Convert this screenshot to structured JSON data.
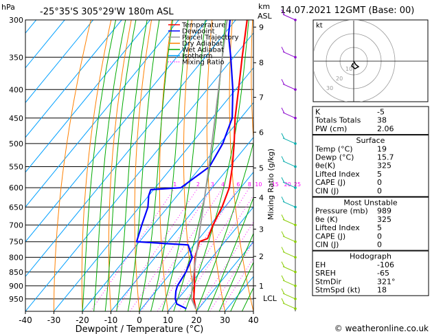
{
  "header": {
    "hpa_label": "hPa",
    "location": "-25°35'S  305°29'W  180m  ASL",
    "km_label": "km",
    "asl_label": "ASL",
    "datetime": "14.07.2021  12GMT  (Base: 00)"
  },
  "legend": [
    {
      "label": "Temperature",
      "color": "#ff0000",
      "dash": "solid"
    },
    {
      "label": "Dewpoint",
      "color": "#0000ff",
      "dash": "solid"
    },
    {
      "label": "Parcel Trajectory",
      "color": "#999999",
      "dash": "solid"
    },
    {
      "label": "Dry Adiabat",
      "color": "#ff8000",
      "dash": "solid"
    },
    {
      "label": "Wet Adiabat",
      "color": "#00aa00",
      "dash": "solid"
    },
    {
      "label": "Isotherm",
      "color": "#00a0ff",
      "dash": "solid"
    },
    {
      "label": "Mixing Ratio",
      "color": "#ff00ff",
      "dash": "dotted"
    }
  ],
  "chart_data": {
    "type": "line",
    "subtype": "skew-t log-p",
    "xlabel": "Dewpoint / Temperature (°C)",
    "ylabel": "hPa",
    "xlim": [
      -40,
      40
    ],
    "ylim": [
      1000,
      300
    ],
    "x_ticks": [
      -40,
      -30,
      -20,
      -10,
      0,
      10,
      20,
      30,
      40
    ],
    "pressure_levels": [
      300,
      350,
      400,
      450,
      500,
      550,
      600,
      650,
      700,
      750,
      800,
      850,
      900,
      950
    ],
    "altitude_km_labels": [
      {
        "km": "9",
        "p": 309
      },
      {
        "km": "8",
        "p": 358
      },
      {
        "km": "7",
        "p": 413
      },
      {
        "km": "6",
        "p": 477
      },
      {
        "km": "5",
        "p": 553
      },
      {
        "km": "4",
        "p": 625
      },
      {
        "km": "3",
        "p": 712
      },
      {
        "km": "2",
        "p": 797
      },
      {
        "km": "1",
        "p": 900
      },
      {
        "km": "LCL",
        "p": 948
      }
    ],
    "mixing_ratio_label": "Mixing Ratio (g/kg)",
    "mixing_ratio_values": [
      "1",
      "2",
      "3",
      "4",
      "6",
      "8",
      "10",
      "15",
      "20",
      "25"
    ],
    "series": [
      {
        "name": "Temperature",
        "color": "#ff0000",
        "points": [
          [
            989,
            19
          ],
          [
            950,
            15.5
          ],
          [
            900,
            12
          ],
          [
            850,
            8
          ],
          [
            800,
            4
          ],
          [
            750,
            1
          ],
          [
            740,
            3
          ],
          [
            700,
            1
          ],
          [
            650,
            -1
          ],
          [
            600,
            -4
          ],
          [
            550,
            -9
          ],
          [
            500,
            -15
          ],
          [
            450,
            -22
          ],
          [
            400,
            -29
          ],
          [
            350,
            -37
          ],
          [
            300,
            -46
          ]
        ]
      },
      {
        "name": "Dewpoint",
        "color": "#0000ff",
        "points": [
          [
            989,
            15.7
          ],
          [
            970,
            11
          ],
          [
            950,
            9
          ],
          [
            920,
            7
          ],
          [
            900,
            6
          ],
          [
            850,
            5
          ],
          [
            800,
            3
          ],
          [
            760,
            -2
          ],
          [
            750,
            -21
          ],
          [
            700,
            -24
          ],
          [
            650,
            -27
          ],
          [
            620,
            -30
          ],
          [
            605,
            -31
          ],
          [
            600,
            -21
          ],
          [
            550,
            -17
          ],
          [
            500,
            -19
          ],
          [
            450,
            -23
          ],
          [
            400,
            -31
          ],
          [
            350,
            -41
          ],
          [
            320,
            -48
          ],
          [
            300,
            -52
          ]
        ]
      },
      {
        "name": "Parcel Trajectory",
        "color": "#999999",
        "points": [
          [
            989,
            19
          ],
          [
            948,
            14.5
          ],
          [
            900,
            11.2
          ],
          [
            850,
            7.8
          ],
          [
            800,
            4.3
          ],
          [
            750,
            0.6
          ],
          [
            700,
            -3.4
          ],
          [
            650,
            -7.6
          ],
          [
            600,
            -12.2
          ],
          [
            550,
            -17.2
          ],
          [
            500,
            -22.8
          ],
          [
            450,
            -29
          ],
          [
            400,
            -36
          ],
          [
            350,
            -44
          ],
          [
            300,
            -53
          ]
        ]
      }
    ],
    "wind_barbs_pressures": [
      989,
      950,
      900,
      850,
      800,
      750,
      700,
      650,
      600,
      550,
      500,
      450,
      400,
      350,
      300
    ]
  },
  "hodograph": {
    "unit_label": "kt",
    "ring_labels": [
      "10",
      "20",
      "30"
    ]
  },
  "indices": {
    "rows": [
      {
        "label": "K",
        "value": "-5"
      },
      {
        "label": "Totals Totals",
        "value": "38"
      },
      {
        "label": "PW (cm)",
        "value": "2.06"
      }
    ]
  },
  "surface": {
    "title": "Surface",
    "rows": [
      {
        "label": "Temp (°C)",
        "value": "19"
      },
      {
        "label": "Dewp (°C)",
        "value": "15.7"
      },
      {
        "label": "θe(K)",
        "value": "325"
      },
      {
        "label": "Lifted Index",
        "value": "5"
      },
      {
        "label": "CAPE (J)",
        "value": "0"
      },
      {
        "label": "CIN (J)",
        "value": "0"
      }
    ]
  },
  "most_unstable": {
    "title": "Most Unstable",
    "rows": [
      {
        "label": "Pressure (mb)",
        "value": "989"
      },
      {
        "label": "θe (K)",
        "value": "325"
      },
      {
        "label": "Lifted Index",
        "value": "5"
      },
      {
        "label": "CAPE (J)",
        "value": "0"
      },
      {
        "label": "CIN (J)",
        "value": "0"
      }
    ]
  },
  "hodograph_table": {
    "title": "Hodograph",
    "rows": [
      {
        "label": "EH",
        "value": "-106"
      },
      {
        "label": "SREH",
        "value": "-65"
      },
      {
        "label": "StmDir",
        "value": "321°"
      },
      {
        "label": "StmSpd (kt)",
        "value": "18"
      }
    ]
  },
  "footer": {
    "copyright": "© weatheronline.co.uk"
  }
}
